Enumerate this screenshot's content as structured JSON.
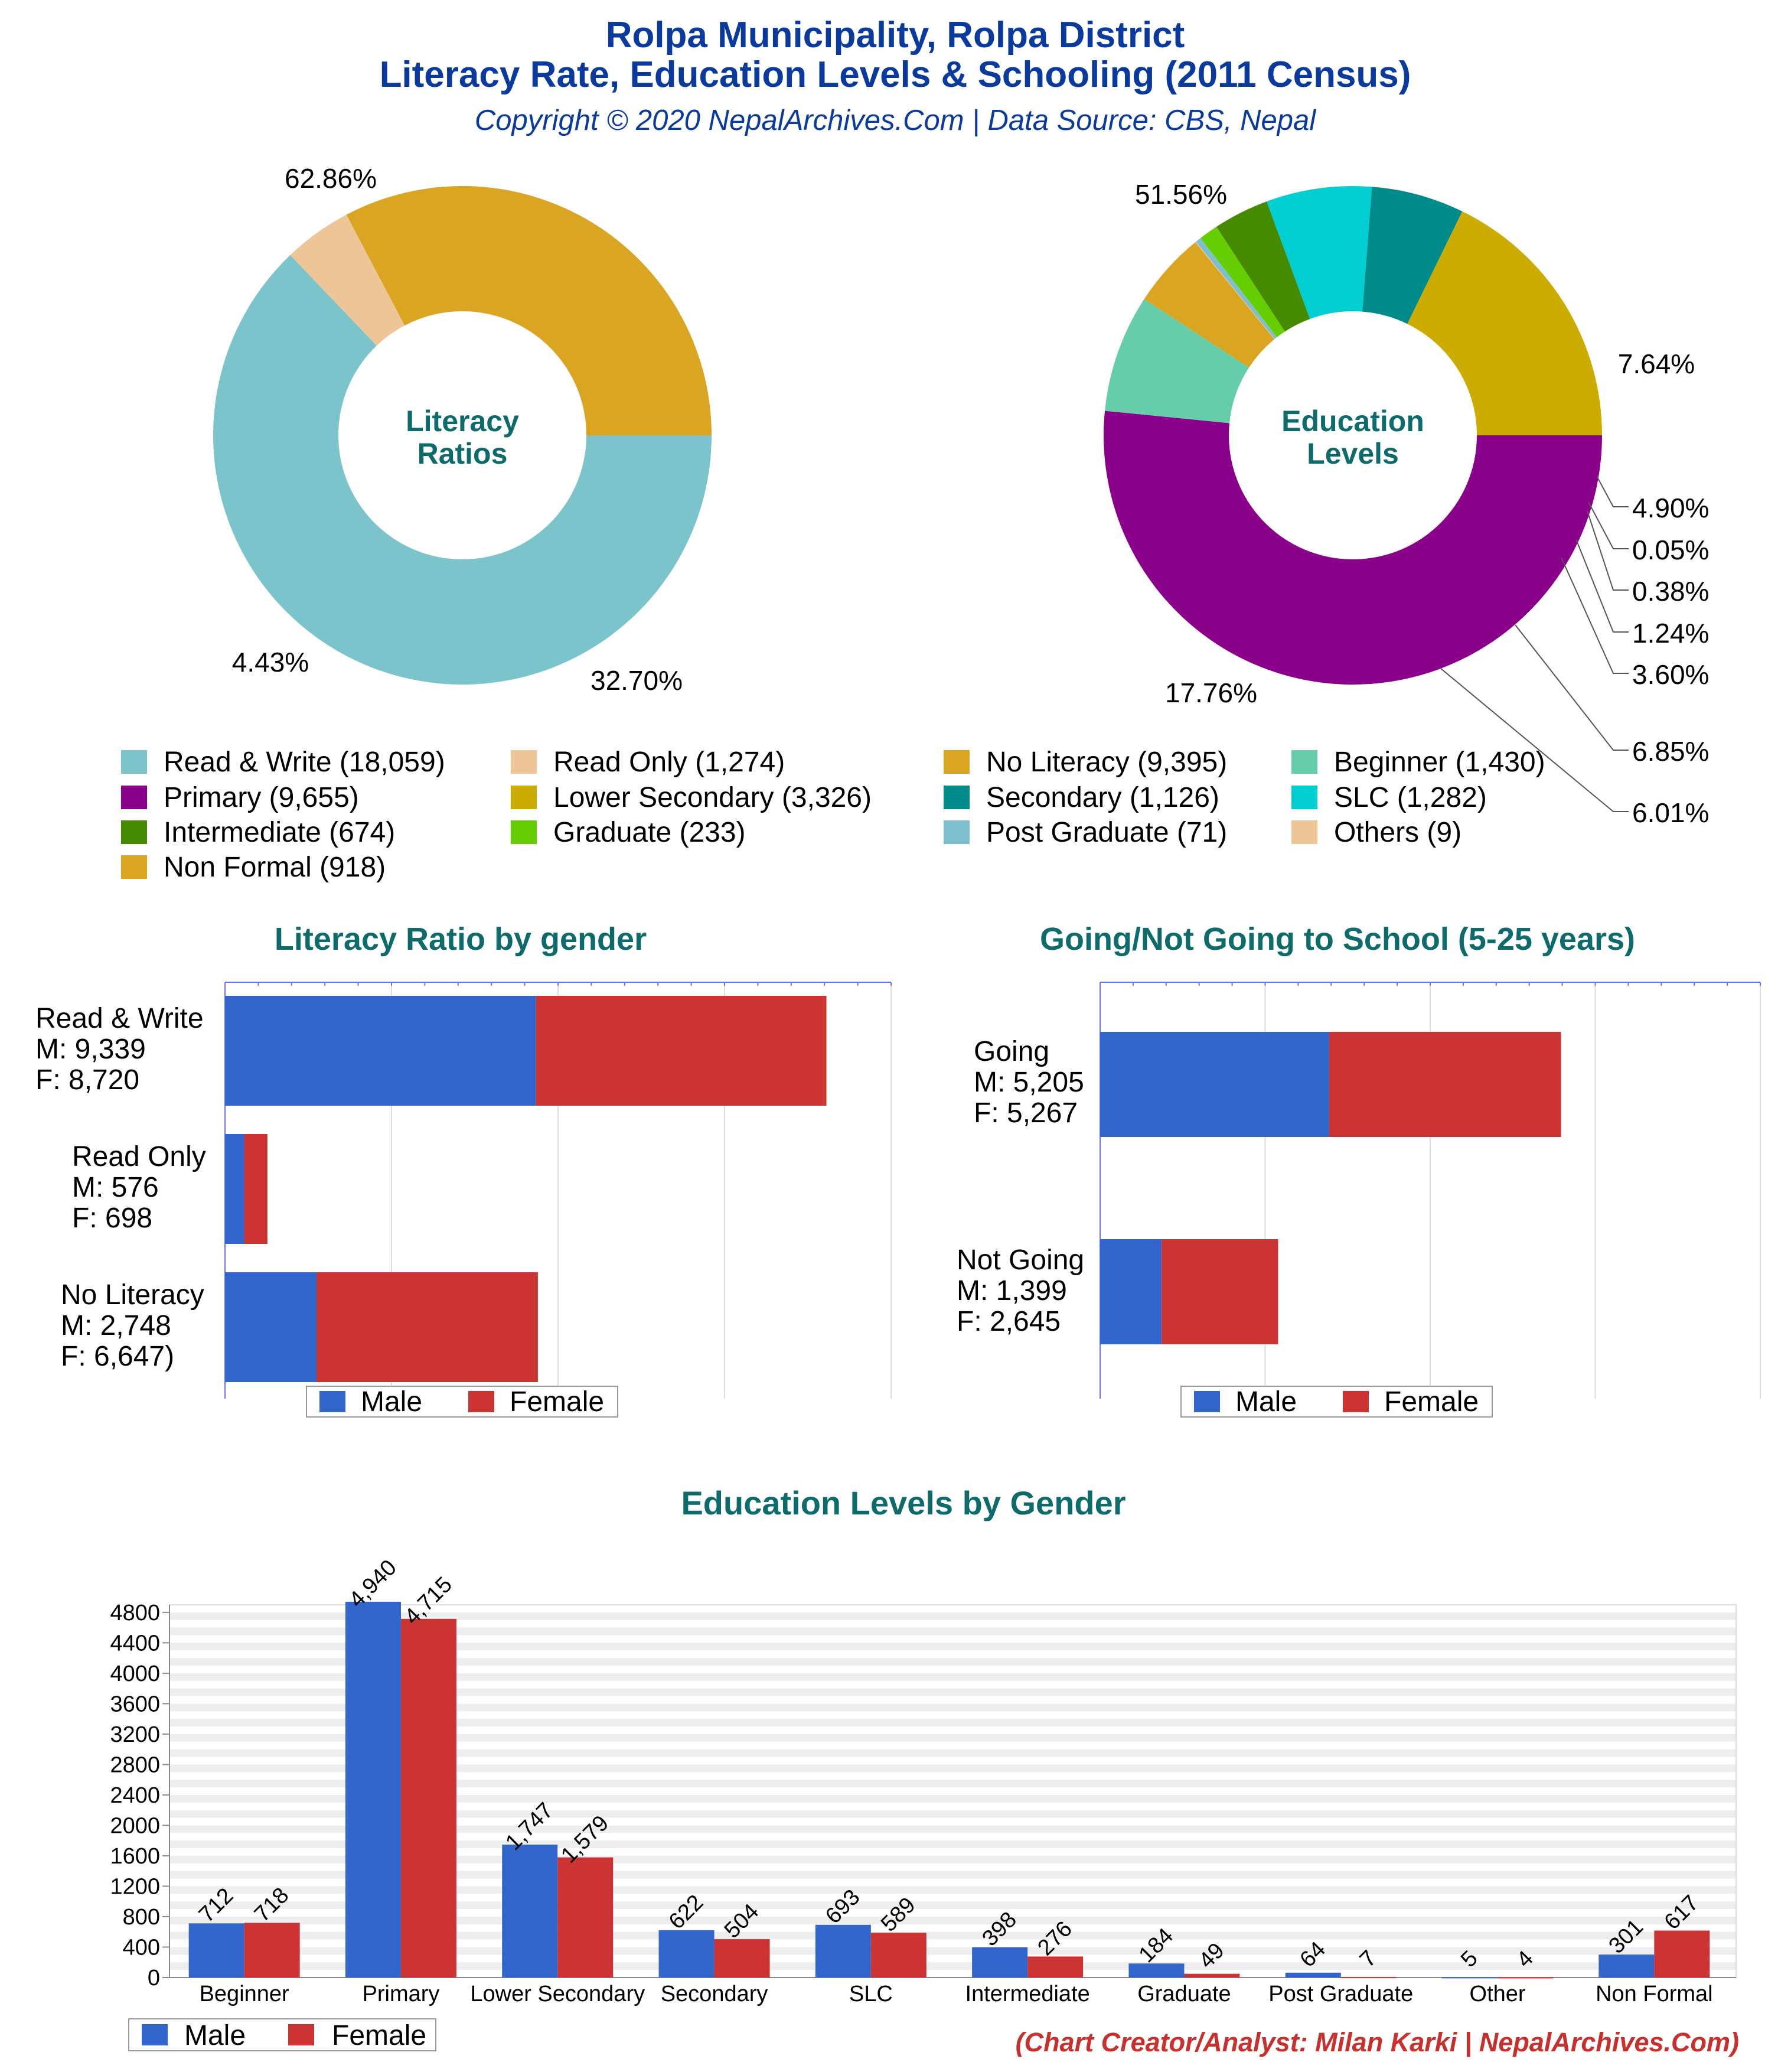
{
  "header": {
    "title_line1": "Rolpa Municipality, Rolpa District",
    "title_line2": "Literacy Rate, Education Levels & Schooling (2011 Census)",
    "subtitle": "Copyright © 2020 NepalArchives.Com | Data Source: CBS, Nepal"
  },
  "footer": {
    "credit": "(Chart Creator/Analyst: Milan Karki | NepalArchives.Com)"
  },
  "colors": {
    "title": "#0b3a9e",
    "section_title": "#0e6b6b",
    "credit": "#c8302e",
    "male": "#3366cc",
    "female": "#cc3333",
    "gridline": "#dddddd",
    "axis": "#6677ee"
  },
  "legend": {
    "items": [
      {
        "label": "Read & Write (18,059)",
        "color": "#7cc4cc"
      },
      {
        "label": "Read Only (1,274)",
        "color": "#edc596"
      },
      {
        "label": "No Literacy (9,395)",
        "color": "#daa520"
      },
      {
        "label": "Beginner (1,430)",
        "color": "#66cdaa"
      },
      {
        "label": "Primary (9,655)",
        "color": "#8b008b"
      },
      {
        "label": "Lower Secondary (3,326)",
        "color": "#ccac00"
      },
      {
        "label": "Secondary (1,126)",
        "color": "#008b8b"
      },
      {
        "label": "SLC (1,282)",
        "color": "#00ced1"
      },
      {
        "label": "Intermediate (674)",
        "color": "#458b00"
      },
      {
        "label": "Graduate (233)",
        "color": "#66cd00"
      },
      {
        "label": "Post Graduate (71)",
        "color": "#7ebfce"
      },
      {
        "label": "Others (9)",
        "color": "#edc596"
      },
      {
        "label": "Non Formal (918)",
        "color": "#daa520"
      }
    ]
  },
  "chart_data": [
    {
      "type": "pie",
      "center_label": [
        "Literacy",
        "Ratios"
      ],
      "slices": [
        {
          "name": "Read & Write",
          "value": 18059,
          "pct_label": "62.86%",
          "color": "#7cc4cc"
        },
        {
          "name": "Read Only",
          "value": 1274,
          "pct_label": "4.43%",
          "color": "#edc596"
        },
        {
          "name": "No Literacy",
          "value": 9395,
          "pct_label": "32.70%",
          "color": "#daa520"
        }
      ]
    },
    {
      "type": "pie",
      "center_label": [
        "Education",
        "Levels"
      ],
      "slices": [
        {
          "name": "Primary",
          "value": 9655,
          "pct_label": "51.56%",
          "color": "#8b008b"
        },
        {
          "name": "Beginner",
          "value": 1430,
          "pct_label": "7.64%",
          "color": "#66cdaa"
        },
        {
          "name": "Non Formal",
          "value": 918,
          "pct_label": "4.90%",
          "color": "#daa520"
        },
        {
          "name": "Others",
          "value": 9,
          "pct_label": "0.05%",
          "color": "#edc596"
        },
        {
          "name": "Post Graduate",
          "value": 71,
          "pct_label": "0.38%",
          "color": "#7ebfce"
        },
        {
          "name": "Graduate",
          "value": 233,
          "pct_label": "1.24%",
          "color": "#66cd00"
        },
        {
          "name": "Intermediate",
          "value": 674,
          "pct_label": "3.60%",
          "color": "#458b00"
        },
        {
          "name": "SLC",
          "value": 1282,
          "pct_label": "6.85%",
          "color": "#00ced1"
        },
        {
          "name": "Secondary",
          "value": 1126,
          "pct_label": "6.01%",
          "color": "#008b8b"
        },
        {
          "name": "Lower Secondary",
          "value": 3326,
          "pct_label": "17.76%",
          "color": "#ccac00"
        }
      ]
    },
    {
      "type": "bar",
      "orientation": "horizontal",
      "stacked": true,
      "title": "Literacy Ratio by gender",
      "categories": [
        "Read & Write",
        "Read Only",
        "No Literacy"
      ],
      "category_labels": [
        [
          "Read & Write",
          "M: 9,339",
          "F: 8,720"
        ],
        [
          "Read Only",
          "M: 576",
          "F: 698"
        ],
        [
          "No Literacy",
          "M: 2,748",
          "F: 6,647)"
        ]
      ],
      "series": [
        {
          "name": "Male",
          "values": [
            9339,
            576,
            2748
          ]
        },
        {
          "name": "Female",
          "values": [
            8720,
            698,
            6647
          ]
        }
      ],
      "xlim": [
        0,
        20000
      ],
      "legend": "bottom"
    },
    {
      "type": "bar",
      "orientation": "horizontal",
      "stacked": true,
      "title": "Going/Not Going to School (5-25 years)",
      "categories": [
        "Going",
        "Not Going"
      ],
      "category_labels": [
        [
          "Going",
          "M: 5,205",
          "F: 5,267"
        ],
        [
          "Not Going",
          "M: 1,399",
          "F: 2,645"
        ]
      ],
      "series": [
        {
          "name": "Male",
          "values": [
            5205,
            1399
          ]
        },
        {
          "name": "Female",
          "values": [
            5267,
            2645
          ]
        }
      ],
      "xlim": [
        0,
        15000
      ],
      "legend": "bottom"
    },
    {
      "type": "bar",
      "orientation": "vertical",
      "title": "Education Levels by Gender",
      "categories": [
        "Beginner",
        "Primary",
        "Lower Secondary",
        "Secondary",
        "SLC",
        "Intermediate",
        "Graduate",
        "Post Graduate",
        "Other",
        "Non Formal"
      ],
      "series": [
        {
          "name": "Male",
          "values": [
            712,
            4940,
            1747,
            622,
            693,
            398,
            184,
            64,
            5,
            301
          ]
        },
        {
          "name": "Female",
          "values": [
            718,
            4715,
            1579,
            504,
            589,
            276,
            49,
            7,
            4,
            617
          ]
        }
      ],
      "value_labels": {
        "Male": [
          "712",
          "4,940",
          "1,747",
          "622",
          "693",
          "398",
          "184",
          "64",
          "5",
          "301"
        ],
        "Female": [
          "718",
          "4,715",
          "1,579",
          "504",
          "589",
          "276",
          "49",
          "7",
          "4",
          "617"
        ]
      },
      "yticks": [
        "0",
        "400",
        "800",
        "1200",
        "1600",
        "2000",
        "2400",
        "2800",
        "3200",
        "3600",
        "4000",
        "4400",
        "4800"
      ],
      "ylim": [
        0,
        4900
      ],
      "legend": "bottom-left"
    }
  ]
}
